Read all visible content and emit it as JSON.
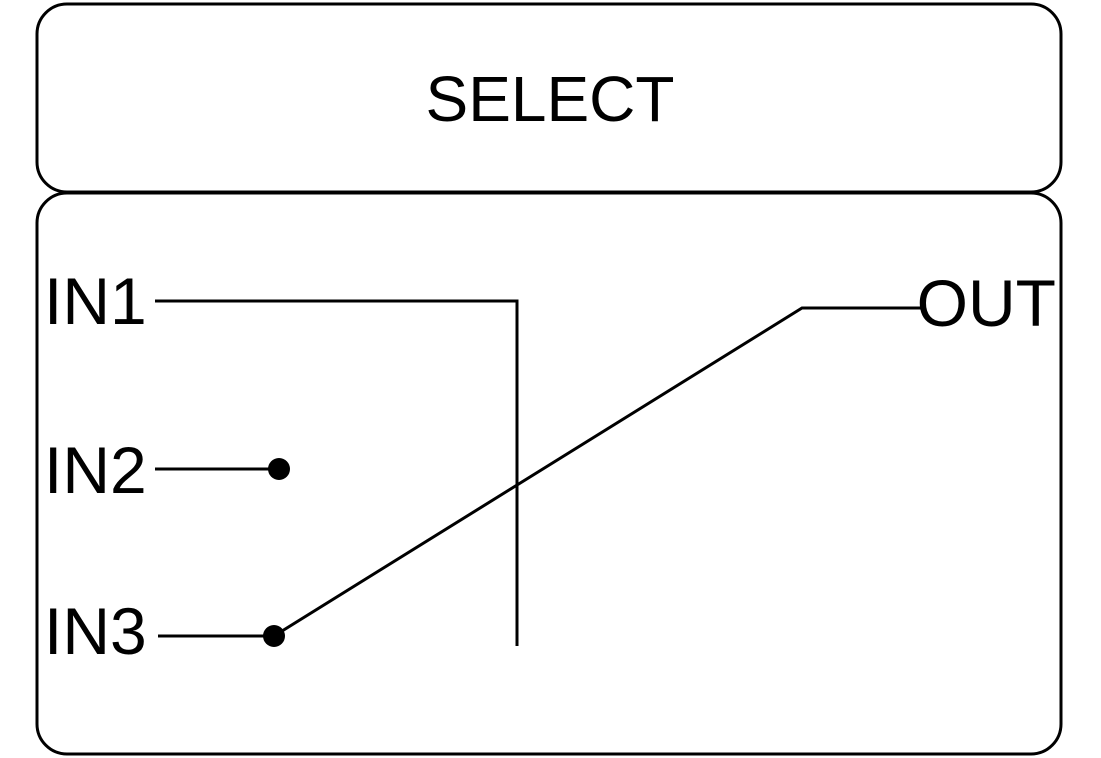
{
  "title": "SELECT",
  "inputs": [
    {
      "label": "IN1"
    },
    {
      "label": "IN2"
    },
    {
      "label": "IN3"
    }
  ],
  "output": {
    "label": "OUT"
  },
  "colors": {
    "line": "#000000",
    "background": "#ffffff"
  }
}
